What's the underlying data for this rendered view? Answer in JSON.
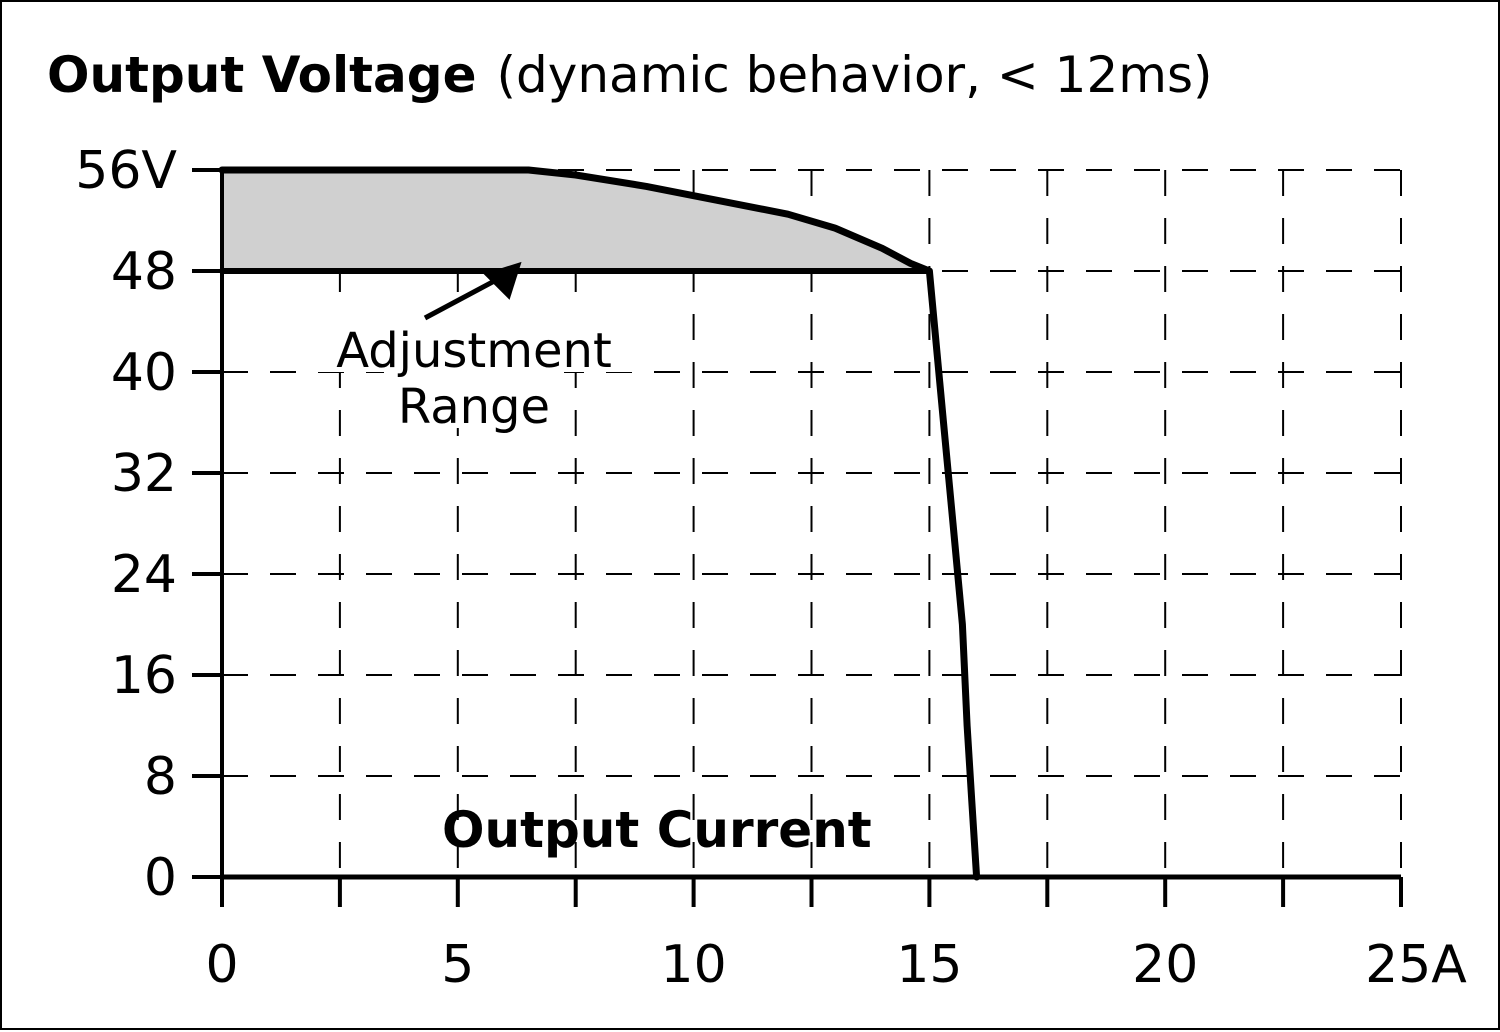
{
  "chart_data": {
    "type": "line",
    "title": "Output Voltage",
    "subtitle": "(dynamic behavior, < 12ms)",
    "xlabel": "Output Current",
    "ylabel": "",
    "xlim": [
      0,
      25
    ],
    "ylim": [
      0,
      56
    ],
    "x_ticks": [
      0,
      5,
      10,
      15,
      20,
      25
    ],
    "x_tick_labels": [
      "0",
      "5",
      "10",
      "15",
      "20",
      "25A"
    ],
    "x_grid": [
      2.5,
      5,
      7.5,
      10,
      12.5,
      15,
      17.5,
      20,
      22.5,
      25
    ],
    "y_ticks": [
      0,
      8,
      16,
      24,
      32,
      40,
      48,
      56
    ],
    "y_tick_labels": [
      "0",
      "8",
      "16",
      "24",
      "32",
      "40",
      "48",
      "56V"
    ],
    "grid": true,
    "grid_style": "dashed",
    "shaded_region_color": "#d0d0d0",
    "line_color": "#000000",
    "series": [
      {
        "x": [
          0,
          6.5,
          7.5,
          9,
          10.5,
          12,
          13,
          14,
          14.6,
          15,
          15.1,
          15.3,
          15.5,
          15.7,
          15.8,
          15.9,
          16.0
        ],
        "values": [
          56,
          56,
          55.6,
          54.7,
          53.6,
          52.5,
          51.4,
          49.8,
          48.6,
          48,
          44,
          36,
          28,
          20,
          12,
          6,
          0
        ]
      },
      {
        "x": [
          0,
          15
        ],
        "values": [
          48,
          48
        ]
      }
    ],
    "annotations": [
      {
        "text_lines": [
          "Adjustment",
          "Range"
        ],
        "points_to": [
          6.5,
          51.5
        ]
      }
    ]
  }
}
